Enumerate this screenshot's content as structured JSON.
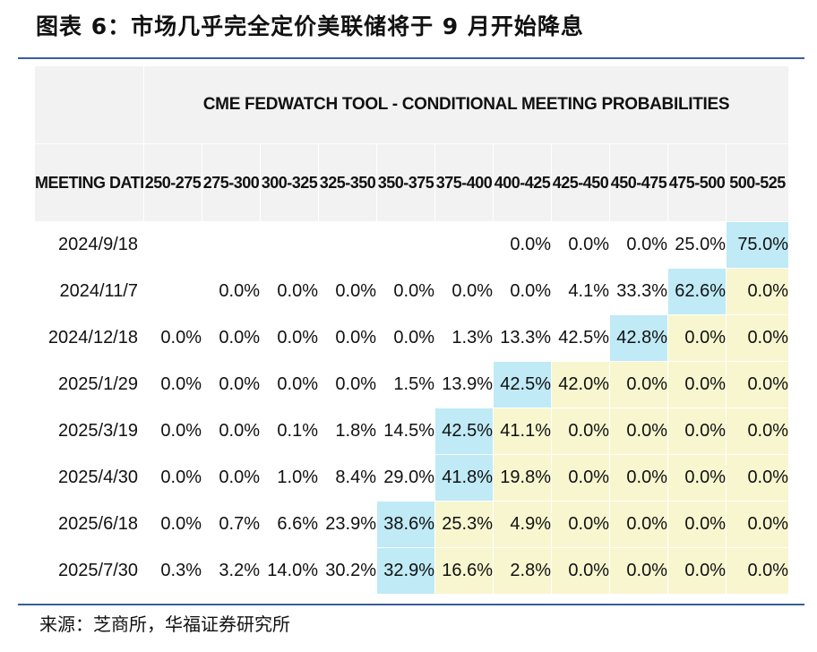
{
  "title": "图表 6：市场几乎完全定价美联储将于 9 月开始降息",
  "source": "来源：芝商所，华福证券研究所",
  "table": {
    "banner": "CME FEDWATCH TOOL - CONDITIONAL MEETING PROBABILITIES",
    "corner_header": "MEETING DATE",
    "columns": [
      "250-275",
      "275-300",
      "300-325",
      "325-350",
      "350-375",
      "375-400",
      "400-425",
      "425-450",
      "450-475",
      "475-500",
      "500-525"
    ],
    "colors": {
      "selected": "#bfeaf6",
      "above_current": "#f7f6cf",
      "header": "#f2f2f2",
      "rule": "#3a5d9c"
    },
    "rows": [
      {
        "date": "2024/9/18",
        "values": [
          "",
          "",
          "",
          "",
          "",
          "",
          "0.0%",
          "0.0%",
          "0.0%",
          "25.0%",
          "75.0%"
        ],
        "highlight": 10
      },
      {
        "date": "2024/11/7",
        "values": [
          "",
          "0.0%",
          "0.0%",
          "0.0%",
          "0.0%",
          "0.0%",
          "0.0%",
          "4.1%",
          "33.3%",
          "62.6%",
          "0.0%"
        ],
        "highlight": 9
      },
      {
        "date": "2024/12/18",
        "values": [
          "0.0%",
          "0.0%",
          "0.0%",
          "0.0%",
          "0.0%",
          "1.3%",
          "13.3%",
          "42.5%",
          "42.8%",
          "0.0%",
          "0.0%"
        ],
        "highlight": 8
      },
      {
        "date": "2025/1/29",
        "values": [
          "0.0%",
          "0.0%",
          "0.0%",
          "0.0%",
          "1.5%",
          "13.9%",
          "42.5%",
          "42.0%",
          "0.0%",
          "0.0%",
          "0.0%"
        ],
        "highlight": 6
      },
      {
        "date": "2025/3/19",
        "values": [
          "0.0%",
          "0.0%",
          "0.1%",
          "1.8%",
          "14.5%",
          "42.5%",
          "41.1%",
          "0.0%",
          "0.0%",
          "0.0%",
          "0.0%"
        ],
        "highlight": 5
      },
      {
        "date": "2025/4/30",
        "values": [
          "0.0%",
          "0.0%",
          "1.0%",
          "8.4%",
          "29.0%",
          "41.8%",
          "19.8%",
          "0.0%",
          "0.0%",
          "0.0%",
          "0.0%"
        ],
        "highlight": 5
      },
      {
        "date": "2025/6/18",
        "values": [
          "0.0%",
          "0.7%",
          "6.6%",
          "23.9%",
          "38.6%",
          "25.3%",
          "4.9%",
          "0.0%",
          "0.0%",
          "0.0%",
          "0.0%"
        ],
        "highlight": 4
      },
      {
        "date": "2025/7/30",
        "values": [
          "0.3%",
          "3.2%",
          "14.0%",
          "30.2%",
          "32.9%",
          "16.6%",
          "2.8%",
          "0.0%",
          "0.0%",
          "0.0%",
          "0.0%"
        ],
        "highlight": 4
      }
    ]
  }
}
